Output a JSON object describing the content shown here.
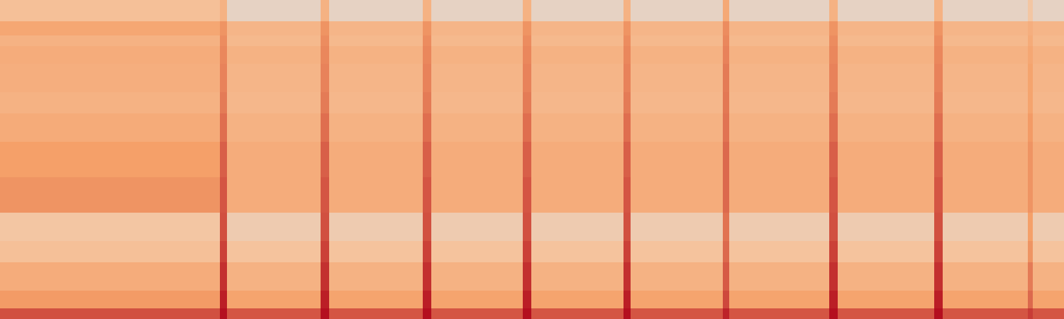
{
  "chart_data": {
    "type": "heatmap",
    "color": "Magma",
    "tick_labels": false,
    "grid": false,
    "xlim": [
      0,
      1500
    ],
    "ylim": [
      0,
      450
    ],
    "zlim": [
      0,
      100
    ],
    "x": [
      0,
      310,
      320,
      452,
      464,
      596,
      608,
      737,
      749,
      879,
      889,
      1019,
      1028,
      1169,
      1181,
      1317,
      1329,
      1449,
      1456,
      1500
    ],
    "y": [
      0,
      15,
      40,
      80,
      110,
      150,
      200,
      250,
      290,
      320,
      360,
      385,
      400,
      420,
      450
    ],
    "z": [
      [
        72,
        98,
        70,
        98,
        70,
        98,
        70,
        98,
        70,
        98,
        70,
        90,
        70,
        98,
        70,
        98,
        70,
        80,
        70
      ],
      [
        42,
        92,
        38,
        92,
        38,
        92,
        38,
        92,
        38,
        92,
        38,
        75,
        38,
        92,
        38,
        92,
        38,
        62,
        38
      ],
      [
        33,
        85,
        30,
        85,
        30,
        85,
        30,
        85,
        30,
        85,
        30,
        68,
        30,
        85,
        30,
        85,
        30,
        55,
        30
      ],
      [
        22,
        78,
        20,
        78,
        20,
        78,
        20,
        78,
        20,
        78,
        20,
        62,
        20,
        78,
        20,
        78,
        20,
        45,
        20
      ],
      [
        18,
        72,
        14,
        72,
        14,
        72,
        14,
        72,
        14,
        72,
        14,
        58,
        14,
        72,
        14,
        72,
        14,
        40,
        14
      ],
      [
        45,
        70,
        33,
        70,
        33,
        70,
        33,
        70,
        33,
        70,
        33,
        62,
        33,
        70,
        33,
        70,
        33,
        45,
        33
      ],
      [
        40,
        66,
        33,
        66,
        33,
        66,
        33,
        66,
        33,
        66,
        33,
        62,
        33,
        66,
        33,
        66,
        33,
        45,
        33
      ],
      [
        34,
        60,
        30,
        60,
        30,
        60,
        30,
        60,
        30,
        60,
        30,
        58,
        30,
        60,
        30,
        60,
        30,
        42,
        30
      ],
      [
        30,
        55,
        27,
        55,
        27,
        55,
        27,
        55,
        27,
        55,
        27,
        56,
        27,
        55,
        27,
        55,
        27,
        38,
        27
      ],
      [
        32,
        52,
        28,
        52,
        28,
        52,
        28,
        52,
        28,
        52,
        28,
        55,
        28,
        52,
        28,
        52,
        28,
        38,
        28
      ],
      [
        33,
        50,
        30,
        50,
        30,
        50,
        30,
        50,
        30,
        50,
        30,
        52,
        30,
        50,
        30,
        50,
        30,
        36,
        30
      ],
      [
        30,
        48,
        26,
        48,
        26,
        48,
        26,
        48,
        26,
        48,
        26,
        50,
        26,
        48,
        26,
        48,
        26,
        34,
        26
      ],
      [
        36,
        45,
        28,
        45,
        28,
        45,
        28,
        45,
        28,
        45,
        28,
        48,
        28,
        45,
        28,
        45,
        28,
        32,
        28
      ],
      [
        22,
        30,
        8,
        30,
        8,
        30,
        8,
        30,
        8,
        30,
        8,
        35,
        8,
        30,
        8,
        30,
        8,
        18,
        8
      ]
    ]
  }
}
